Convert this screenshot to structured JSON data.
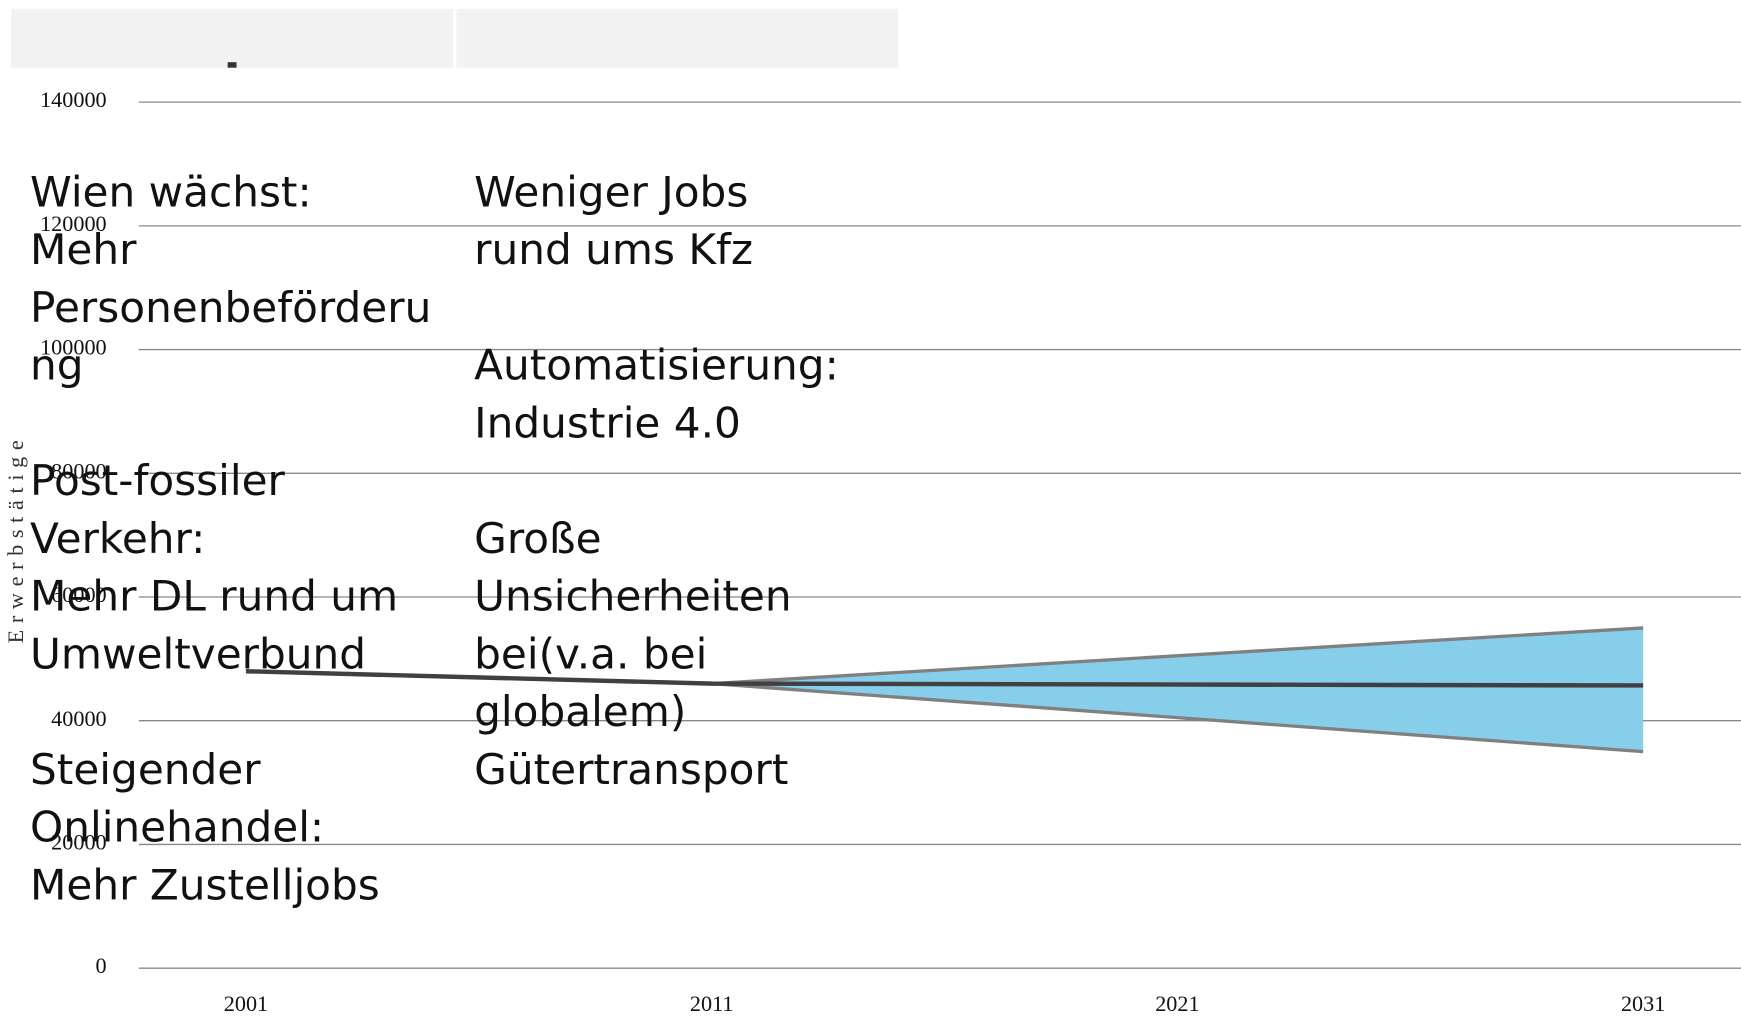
{
  "chart_data": {
    "type": "line",
    "y_label": "Erwerbstätige",
    "x": [
      2001,
      2011,
      2031
    ],
    "series": [
      {
        "color": "#404040",
        "values": [
          48000,
          46000,
          45700
        ]
      }
    ],
    "band": {
      "x": [
        2011,
        2031
      ],
      "upper": [
        46000,
        55000
      ],
      "lower": [
        46000,
        35000
      ],
      "color": "#87ceeb",
      "edge_color": "#808080"
    },
    "xlim": [
      1998.7,
      2033.1
    ],
    "xticks": [
      2001,
      2011,
      2021,
      2031
    ],
    "ylim": [
      0,
      140000
    ],
    "yticks": [
      0,
      20000,
      40000,
      60000,
      80000,
      100000,
      120000,
      140000
    ],
    "grid": true
  },
  "text_boxes": {
    "left": [
      "Wien wächst:\nMehr Personenbeförderung",
      "Post-fossiler\nVerkehr:\nMehr DL rund um\nUmweltverbund",
      "Steigender\nOnlinehandel:\nMehr Zustelljobs"
    ],
    "right": [
      "Weniger Jobs\nrund ums Kfz",
      "Automatisierung:\nIndustrie 4.0",
      "Große\nUnsicherheiten\nbei(v.a. bei\nglobalem)\nGütertransport"
    ]
  }
}
